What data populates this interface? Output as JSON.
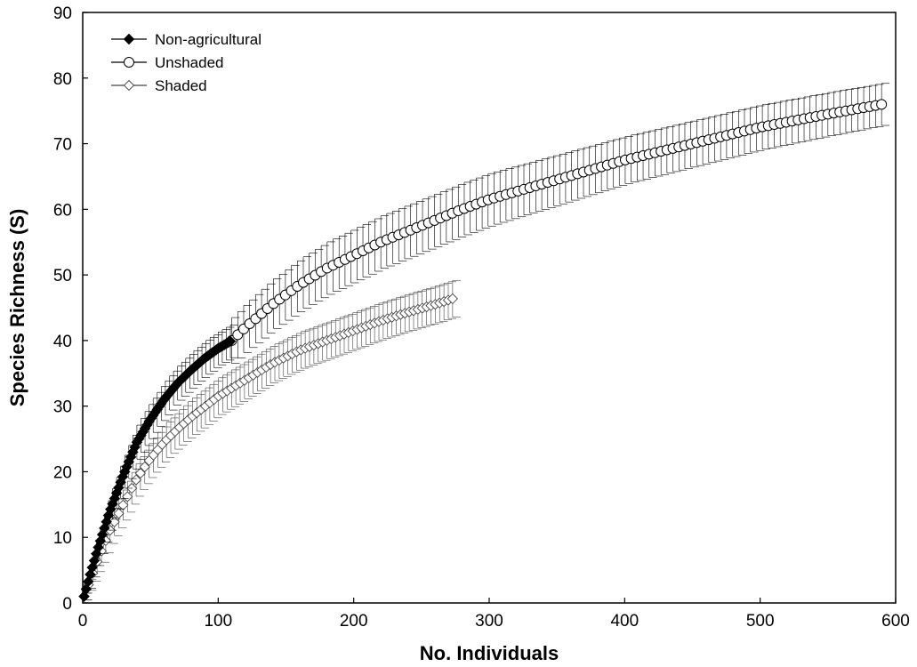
{
  "chart_data": {
    "type": "line",
    "title": "",
    "xlabel": "No. Individuals",
    "ylabel": "Species Richness (S)",
    "xlim": [
      0,
      600
    ],
    "ylim": [
      0,
      90
    ],
    "xticks": [
      0,
      100,
      200,
      300,
      400,
      500,
      600
    ],
    "yticks": [
      0,
      10,
      20,
      30,
      40,
      50,
      60,
      70,
      80,
      90
    ],
    "grid": false,
    "legend_position": "top-left",
    "error_bars": true,
    "series": [
      {
        "name": "Non-agricultural",
        "marker": "filled-diamond",
        "color": "#000000",
        "points": [
          [
            1,
            1
          ],
          [
            5,
            4
          ],
          [
            10,
            7.5
          ],
          [
            20,
            14
          ],
          [
            30,
            19.5
          ],
          [
            40,
            24.5
          ],
          [
            50,
            28
          ],
          [
            60,
            31
          ],
          [
            70,
            33.5
          ],
          [
            80,
            35.5
          ],
          [
            90,
            37.3
          ],
          [
            100,
            38.8
          ],
          [
            110,
            40
          ]
        ],
        "errors": [
          [
            1,
            0.5
          ],
          [
            5,
            1.2
          ],
          [
            10,
            1.8
          ],
          [
            20,
            2.3
          ],
          [
            30,
            2.5
          ],
          [
            40,
            2.6
          ],
          [
            50,
            2.6
          ],
          [
            60,
            2.6
          ],
          [
            70,
            2.6
          ],
          [
            80,
            2.6
          ],
          [
            90,
            2.6
          ],
          [
            100,
            2.5
          ],
          [
            110,
            2.5
          ]
        ]
      },
      {
        "name": "Unshaded",
        "marker": "open-circle",
        "color": "#000000",
        "points": [
          [
            110,
            40
          ],
          [
            120,
            42
          ],
          [
            140,
            45.5
          ],
          [
            160,
            48.5
          ],
          [
            180,
            51
          ],
          [
            200,
            53
          ],
          [
            220,
            55
          ],
          [
            250,
            57.5
          ],
          [
            280,
            60
          ],
          [
            300,
            61.5
          ],
          [
            350,
            64.5
          ],
          [
            400,
            67.5
          ],
          [
            450,
            70
          ],
          [
            500,
            72.5
          ],
          [
            550,
            74.5
          ],
          [
            590,
            76
          ]
        ],
        "errors": [
          [
            110,
            3.5
          ],
          [
            120,
            3.6
          ],
          [
            140,
            3.8
          ],
          [
            160,
            3.9
          ],
          [
            180,
            4.0
          ],
          [
            200,
            4.0
          ],
          [
            220,
            4.0
          ],
          [
            250,
            4.0
          ],
          [
            280,
            4.0
          ],
          [
            300,
            4.0
          ],
          [
            350,
            3.8
          ],
          [
            400,
            3.6
          ],
          [
            450,
            3.5
          ],
          [
            500,
            3.4
          ],
          [
            550,
            3.3
          ],
          [
            590,
            3.2
          ]
        ]
      },
      {
        "name": "Shaded",
        "marker": "open-diamond",
        "color": "#444444",
        "points": [
          [
            1,
            1
          ],
          [
            10,
            6
          ],
          [
            20,
            11
          ],
          [
            30,
            15
          ],
          [
            40,
            19
          ],
          [
            50,
            22
          ],
          [
            60,
            24.5
          ],
          [
            70,
            26.5
          ],
          [
            80,
            28.3
          ],
          [
            100,
            31.5
          ],
          [
            120,
            34
          ],
          [
            140,
            36.5
          ],
          [
            160,
            38.5
          ],
          [
            180,
            40
          ],
          [
            200,
            41.5
          ],
          [
            220,
            43
          ],
          [
            240,
            44.3
          ],
          [
            260,
            45.5
          ],
          [
            275,
            46.5
          ]
        ],
        "errors": [
          [
            1,
            0.5
          ],
          [
            10,
            1.5
          ],
          [
            20,
            2
          ],
          [
            30,
            2.3
          ],
          [
            40,
            2.5
          ],
          [
            50,
            2.6
          ],
          [
            60,
            2.7
          ],
          [
            70,
            2.7
          ],
          [
            80,
            2.8
          ],
          [
            100,
            2.8
          ],
          [
            120,
            2.8
          ],
          [
            140,
            2.8
          ],
          [
            160,
            2.8
          ],
          [
            180,
            2.8
          ],
          [
            200,
            2.8
          ],
          [
            220,
            2.8
          ],
          [
            240,
            2.8
          ],
          [
            260,
            2.8
          ],
          [
            275,
            2.8
          ]
        ]
      }
    ]
  }
}
